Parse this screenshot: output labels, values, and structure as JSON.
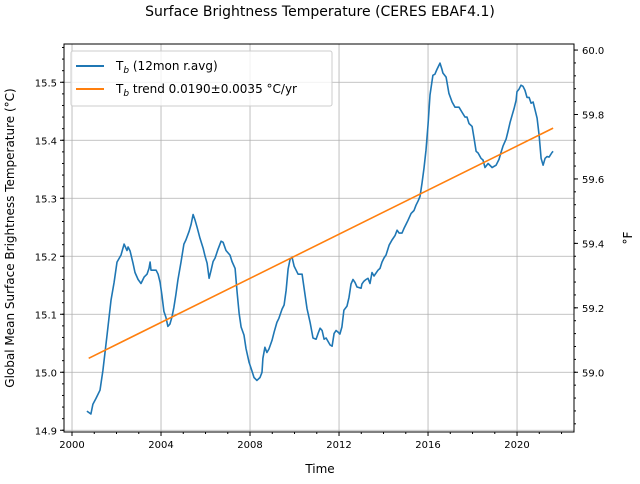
{
  "chart_data": {
    "type": "line",
    "title": "Surface Brightness Temperature  (CERES EBAF4.1)",
    "xlabel": "Time",
    "ylabel": "Global Mean Surface Brightness Temperature (°C)",
    "ylabel_right": "°F",
    "xlim": [
      1999.64,
      2022.56
    ],
    "ylim": [
      14.897,
      15.566
    ],
    "xticks": [
      2000,
      2004,
      2008,
      2012,
      2016,
      2020
    ],
    "xtick_labels": [
      "2000",
      "2004",
      "2008",
      "2012",
      "2016",
      "2020"
    ],
    "yticks": [
      14.9,
      15.0,
      15.1,
      15.2,
      15.3,
      15.4,
      15.5
    ],
    "ytick_labels": [
      "14.9",
      "15.0",
      "15.1",
      "15.2",
      "15.3",
      "15.4",
      "15.5"
    ],
    "yticks_right": [
      59.0,
      59.2,
      59.4,
      59.6,
      59.8,
      60.0
    ],
    "ytick_right_labels": [
      "59.0",
      "59.2",
      "59.4",
      "59.6",
      "59.8",
      "60.0"
    ],
    "grid": true,
    "legend_position": "top-left",
    "series": [
      {
        "name": "T_b (12mon r.avg)",
        "legend_main": "T",
        "legend_sub": "b",
        "legend_rest": " (12mon r.avg)",
        "color": "#1f77b4",
        "x": [
          2000.67,
          2000.85,
          2000.94,
          2001.08,
          2001.26,
          2001.39,
          2001.57,
          2001.75,
          2001.89,
          2002.02,
          2002.2,
          2002.34,
          2002.47,
          2002.52,
          2002.61,
          2002.74,
          2002.83,
          2002.97,
          2003.1,
          2003.24,
          2003.37,
          2003.46,
          2003.51,
          2003.55,
          2003.78,
          2003.87,
          2003.96,
          2004.04,
          2004.13,
          2004.22,
          2004.31,
          2004.4,
          2004.49,
          2004.58,
          2004.67,
          2004.76,
          2004.9,
          2005.03,
          2005.12,
          2005.26,
          2005.35,
          2005.44,
          2005.53,
          2005.62,
          2005.75,
          2005.89,
          2005.98,
          2006.07,
          2006.16,
          2006.25,
          2006.34,
          2006.43,
          2006.56,
          2006.7,
          2006.79,
          2006.92,
          2007.1,
          2007.19,
          2007.33,
          2007.42,
          2007.51,
          2007.6,
          2007.73,
          2007.82,
          2007.96,
          2008.09,
          2008.18,
          2008.31,
          2008.45,
          2008.54,
          2008.58,
          2008.67,
          2008.76,
          2008.85,
          2008.99,
          2009.08,
          2009.21,
          2009.3,
          2009.44,
          2009.53,
          2009.62,
          2009.71,
          2009.8,
          2009.89,
          2009.98,
          2010.07,
          2010.16,
          2010.34,
          2010.43,
          2010.56,
          2010.7,
          2010.83,
          2010.97,
          2011.06,
          2011.15,
          2011.24,
          2011.33,
          2011.42,
          2011.6,
          2011.69,
          2011.78,
          2011.87,
          2011.96,
          2012.04,
          2012.13,
          2012.22,
          2012.36,
          2012.45,
          2012.54,
          2012.63,
          2012.72,
          2012.81,
          2012.99,
          2013.03,
          2013.12,
          2013.21,
          2013.3,
          2013.39,
          2013.48,
          2013.57,
          2013.75,
          2013.84,
          2013.93,
          2014.02,
          2014.11,
          2014.25,
          2014.38,
          2014.52,
          2014.61,
          2014.7,
          2014.83,
          2014.92,
          2015.01,
          2015.1,
          2015.24,
          2015.37,
          2015.46,
          2015.55,
          2015.64,
          2015.73,
          2015.82,
          2015.91,
          2016.0,
          2016.09,
          2016.22,
          2016.31,
          2016.4,
          2016.54,
          2016.63,
          2016.67,
          2016.81,
          2016.94,
          2017.08,
          2017.21,
          2017.39,
          2017.53,
          2017.66,
          2017.75,
          2017.84,
          2017.98,
          2018.07,
          2018.16,
          2018.25,
          2018.38,
          2018.47,
          2018.56,
          2018.7,
          2018.88,
          2019.06,
          2019.19,
          2019.28,
          2019.37,
          2019.51,
          2019.6,
          2019.69,
          2019.78,
          2019.87,
          2019.96,
          2020.0,
          2020.09,
          2020.18,
          2020.27,
          2020.36,
          2020.45,
          2020.54,
          2020.63,
          2020.72,
          2020.81,
          2020.9,
          2020.99,
          2021.08,
          2021.17,
          2021.26,
          2021.35,
          2021.44,
          2021.57,
          2021.62
        ],
        "y": [
          14.933,
          14.928,
          14.945,
          14.955,
          14.969,
          15.003,
          15.062,
          15.124,
          15.155,
          15.19,
          15.202,
          15.221,
          15.21,
          15.216,
          15.209,
          15.188,
          15.172,
          15.16,
          15.153,
          15.164,
          15.169,
          15.179,
          15.19,
          15.176,
          15.176,
          15.169,
          15.155,
          15.133,
          15.105,
          15.095,
          15.079,
          15.083,
          15.095,
          15.112,
          15.134,
          15.159,
          15.19,
          15.221,
          15.228,
          15.243,
          15.255,
          15.272,
          15.262,
          15.25,
          15.231,
          15.214,
          15.2,
          15.188,
          15.162,
          15.176,
          15.191,
          15.197,
          15.212,
          15.226,
          15.224,
          15.21,
          15.202,
          15.191,
          15.179,
          15.138,
          15.102,
          15.078,
          15.064,
          15.041,
          15.017,
          15.002,
          14.991,
          14.986,
          14.991,
          15.0,
          15.024,
          15.043,
          15.034,
          15.04,
          15.055,
          15.069,
          15.086,
          15.093,
          15.109,
          15.116,
          15.141,
          15.178,
          15.195,
          15.198,
          15.183,
          15.176,
          15.169,
          15.169,
          15.145,
          15.11,
          15.086,
          15.059,
          15.057,
          15.067,
          15.076,
          15.072,
          15.057,
          15.059,
          15.047,
          15.045,
          15.067,
          15.072,
          15.069,
          15.066,
          15.078,
          15.107,
          15.114,
          15.129,
          15.152,
          15.16,
          15.155,
          15.147,
          15.145,
          15.152,
          15.157,
          15.16,
          15.162,
          15.153,
          15.172,
          15.166,
          15.176,
          15.179,
          15.19,
          15.197,
          15.202,
          15.219,
          15.228,
          15.236,
          15.245,
          15.24,
          15.24,
          15.248,
          15.255,
          15.262,
          15.274,
          15.279,
          15.288,
          15.295,
          15.303,
          15.326,
          15.352,
          15.383,
          15.426,
          15.478,
          15.512,
          15.514,
          15.522,
          15.533,
          15.522,
          15.516,
          15.509,
          15.481,
          15.466,
          15.457,
          15.457,
          15.448,
          15.44,
          15.44,
          15.429,
          15.424,
          15.403,
          15.381,
          15.378,
          15.369,
          15.366,
          15.353,
          15.36,
          15.353,
          15.357,
          15.367,
          15.379,
          15.39,
          15.402,
          15.416,
          15.431,
          15.443,
          15.455,
          15.469,
          15.484,
          15.488,
          15.495,
          15.493,
          15.486,
          15.474,
          15.474,
          15.464,
          15.466,
          15.452,
          15.438,
          15.409,
          15.369,
          15.357,
          15.369,
          15.372,
          15.371,
          15.379,
          15.381
        ]
      },
      {
        "name": "T_b trend 0.0190±0.0035 °C/yr",
        "legend_main": "T",
        "legend_sub": "b",
        "legend_rest": " trend 0.0190±0.0035 °C/yr",
        "color": "#ff7f0e",
        "x": [
          2000.75,
          2021.62
        ],
        "y": [
          15.024,
          15.421
        ]
      }
    ]
  }
}
